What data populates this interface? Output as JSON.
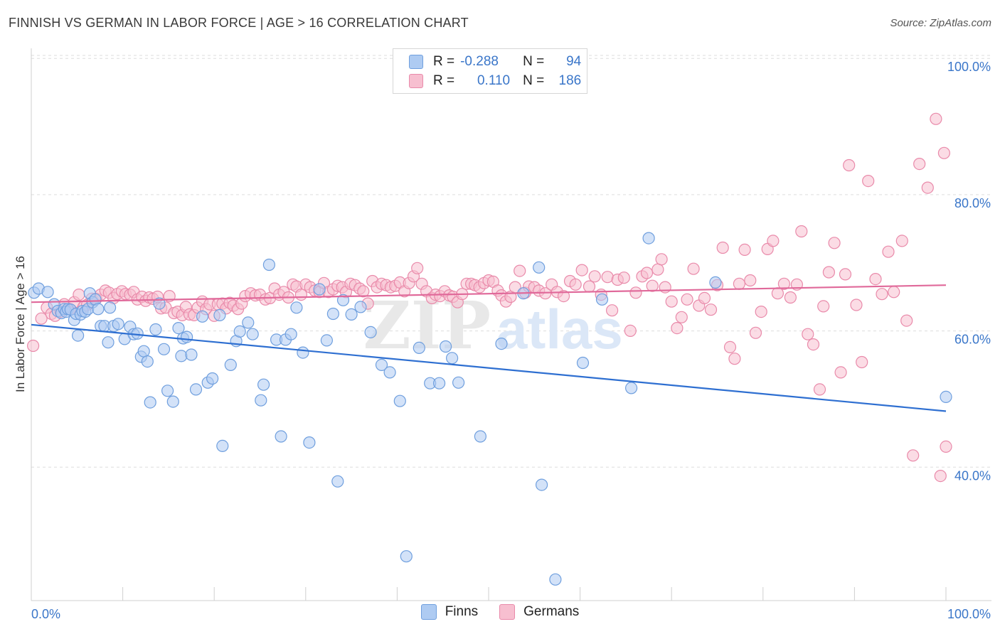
{
  "header": {
    "title": "FINNISH VS GERMAN IN LABOR FORCE | AGE > 16 CORRELATION CHART",
    "source": "Source: ZipAtlas.com"
  },
  "legend": {
    "finns": {
      "r_label": "R =",
      "r_value": "-0.288",
      "n_label": "N =",
      "n_value": "94"
    },
    "germans": {
      "r_label": "R =",
      "r_value": "0.110",
      "n_label": "N =",
      "n_value": "186"
    }
  },
  "bottom_legend": [
    "Finns",
    "Germans"
  ],
  "colors": {
    "finns_fill": "#aecbf2",
    "finns_stroke": "#6f9fde",
    "finns_line": "#2e6fd1",
    "germans_fill": "#f7bfd0",
    "germans_stroke": "#e98aaa",
    "germans_line": "#e0699a",
    "axis_text": "#3a76c9",
    "grid": "#dddddd"
  },
  "chart_data": {
    "type": "scatter",
    "title": "FINNISH VS GERMAN IN LABOR FORCE | AGE > 16 CORRELATION CHART",
    "xlabel": "",
    "ylabel": "In Labor Force | Age > 16",
    "xlim": [
      0,
      100
    ],
    "ylim": [
      20,
      103
    ],
    "x_tick_labels": [
      "0.0%",
      "100.0%"
    ],
    "y_ticks": [
      40,
      60,
      80,
      100
    ],
    "y_tick_labels": [
      "40.0%",
      "60.0%",
      "80.0%",
      "100.0%"
    ],
    "grid": true,
    "watermark": "ZIPatlas",
    "series": [
      {
        "name": "Finns",
        "r": -0.288,
        "n": 94,
        "trend": {
          "x": [
            0,
            100
          ],
          "y": [
            60.5,
            47.8
          ]
        },
        "points": [
          [
            0.3,
            65.2
          ],
          [
            0.8,
            65.8
          ],
          [
            1.8,
            65.3
          ],
          [
            2.5,
            63.5
          ],
          [
            2.9,
            62.5
          ],
          [
            3.3,
            62.2
          ],
          [
            3.6,
            62.8
          ],
          [
            3.8,
            62.4
          ],
          [
            4.0,
            62.8
          ],
          [
            4.3,
            62.7
          ],
          [
            4.7,
            61.2
          ],
          [
            4.9,
            62.1
          ],
          [
            5.1,
            58.9
          ],
          [
            5.4,
            62.0
          ],
          [
            5.6,
            62.5
          ],
          [
            5.9,
            62.4
          ],
          [
            6.2,
            62.8
          ],
          [
            6.4,
            65.1
          ],
          [
            6.7,
            63.8
          ],
          [
            7.0,
            64.2
          ],
          [
            7.3,
            62.8
          ],
          [
            7.6,
            60.3
          ],
          [
            8.0,
            60.3
          ],
          [
            8.4,
            57.9
          ],
          [
            8.6,
            63.0
          ],
          [
            9.0,
            60.3
          ],
          [
            9.5,
            60.6
          ],
          [
            10.2,
            58.4
          ],
          [
            10.8,
            60.2
          ],
          [
            11.2,
            59.1
          ],
          [
            11.6,
            59.2
          ],
          [
            12.0,
            55.8
          ],
          [
            12.3,
            56.6
          ],
          [
            12.7,
            55.1
          ],
          [
            13.0,
            49.1
          ],
          [
            13.6,
            59.8
          ],
          [
            14.0,
            63.6
          ],
          [
            14.5,
            56.9
          ],
          [
            14.9,
            50.8
          ],
          [
            15.5,
            49.2
          ],
          [
            16.1,
            60.0
          ],
          [
            16.4,
            55.9
          ],
          [
            16.6,
            58.5
          ],
          [
            17.0,
            58.7
          ],
          [
            17.5,
            56.1
          ],
          [
            18.0,
            51.0
          ],
          [
            18.7,
            61.7
          ],
          [
            19.3,
            52.0
          ],
          [
            19.8,
            52.6
          ],
          [
            20.6,
            61.9
          ],
          [
            20.9,
            42.7
          ],
          [
            21.8,
            54.6
          ],
          [
            22.4,
            58.1
          ],
          [
            22.8,
            59.5
          ],
          [
            23.7,
            60.8
          ],
          [
            24.2,
            59.1
          ],
          [
            25.1,
            49.4
          ],
          [
            25.4,
            51.7
          ],
          [
            26.0,
            69.3
          ],
          [
            26.8,
            58.3
          ],
          [
            27.3,
            44.1
          ],
          [
            27.8,
            58.3
          ],
          [
            28.4,
            59.1
          ],
          [
            29.0,
            63.0
          ],
          [
            29.7,
            56.4
          ],
          [
            30.4,
            43.2
          ],
          [
            31.5,
            65.7
          ],
          [
            32.3,
            58.2
          ],
          [
            33.0,
            62.1
          ],
          [
            33.5,
            37.5
          ],
          [
            34.1,
            64.1
          ],
          [
            35.0,
            62.0
          ],
          [
            36.0,
            63.1
          ],
          [
            37.1,
            59.4
          ],
          [
            38.3,
            54.6
          ],
          [
            39.2,
            53.5
          ],
          [
            40.3,
            49.3
          ],
          [
            41.0,
            26.5
          ],
          [
            42.4,
            57.1
          ],
          [
            43.6,
            51.9
          ],
          [
            44.6,
            51.9
          ],
          [
            45.3,
            57.3
          ],
          [
            46.0,
            55.6
          ],
          [
            46.7,
            52.0
          ],
          [
            49.1,
            44.1
          ],
          [
            51.4,
            57.7
          ],
          [
            53.8,
            65.1
          ],
          [
            55.5,
            68.9
          ],
          [
            55.8,
            37.0
          ],
          [
            57.3,
            23.1
          ],
          [
            60.3,
            54.9
          ],
          [
            62.4,
            64.2
          ],
          [
            65.6,
            51.2
          ],
          [
            67.5,
            73.2
          ],
          [
            74.8,
            66.7
          ],
          [
            100.0,
            49.9
          ]
        ]
      },
      {
        "name": "Germans",
        "r": 0.11,
        "n": 186,
        "trend": {
          "x": [
            0,
            100
          ],
          "y": [
            63.8,
            66.3
          ]
        },
        "points": [
          [
            0.2,
            57.4
          ],
          [
            1.1,
            61.4
          ],
          [
            1.7,
            63.0
          ],
          [
            2.2,
            62.1
          ],
          [
            2.6,
            61.8
          ],
          [
            3.2,
            62.4
          ],
          [
            3.6,
            63.5
          ],
          [
            4.2,
            62.8
          ],
          [
            4.7,
            63.8
          ],
          [
            5.2,
            64.9
          ],
          [
            5.7,
            63.1
          ],
          [
            6.1,
            63.4
          ],
          [
            6.6,
            64.3
          ],
          [
            7.1,
            64.3
          ],
          [
            7.6,
            64.9
          ],
          [
            8.1,
            65.5
          ],
          [
            8.5,
            65.2
          ],
          [
            9.0,
            64.4
          ],
          [
            9.4,
            65.0
          ],
          [
            9.9,
            65.4
          ],
          [
            10.3,
            65.0
          ],
          [
            10.8,
            64.9
          ],
          [
            11.2,
            65.3
          ],
          [
            11.6,
            64.2
          ],
          [
            12.1,
            64.6
          ],
          [
            12.5,
            64.0
          ],
          [
            12.9,
            64.5
          ],
          [
            13.3,
            64.3
          ],
          [
            13.8,
            64.6
          ],
          [
            14.2,
            62.9
          ],
          [
            14.7,
            63.0
          ],
          [
            15.1,
            64.7
          ],
          [
            15.6,
            62.2
          ],
          [
            16.0,
            62.4
          ],
          [
            16.5,
            61.9
          ],
          [
            16.9,
            63.1
          ],
          [
            17.3,
            62.0
          ],
          [
            17.8,
            61.9
          ],
          [
            18.2,
            63.0
          ],
          [
            18.7,
            63.9
          ],
          [
            19.1,
            62.8
          ],
          [
            19.5,
            63.5
          ],
          [
            20.0,
            61.8
          ],
          [
            20.4,
            63.5
          ],
          [
            20.9,
            63.6
          ],
          [
            21.3,
            62.9
          ],
          [
            21.7,
            63.7
          ],
          [
            22.1,
            63.3
          ],
          [
            22.6,
            62.8
          ],
          [
            23.0,
            63.6
          ],
          [
            23.4,
            64.7
          ],
          [
            24.0,
            65.1
          ],
          [
            24.5,
            64.8
          ],
          [
            25.0,
            64.9
          ],
          [
            25.6,
            64.2
          ],
          [
            26.1,
            64.4
          ],
          [
            26.6,
            65.8
          ],
          [
            27.1,
            64.9
          ],
          [
            27.6,
            65.3
          ],
          [
            28.1,
            64.5
          ],
          [
            28.6,
            66.4
          ],
          [
            29.0,
            66.1
          ],
          [
            29.5,
            64.9
          ],
          [
            30.0,
            66.4
          ],
          [
            30.5,
            66.0
          ],
          [
            31.0,
            65.5
          ],
          [
            31.5,
            65.3
          ],
          [
            32.0,
            66.6
          ],
          [
            32.5,
            65.3
          ],
          [
            33.0,
            65.7
          ],
          [
            33.5,
            66.2
          ],
          [
            34.0,
            66.0
          ],
          [
            34.4,
            65.3
          ],
          [
            34.9,
            66.5
          ],
          [
            35.4,
            66.3
          ],
          [
            35.9,
            65.8
          ],
          [
            36.3,
            65.4
          ],
          [
            36.8,
            63.6
          ],
          [
            37.3,
            66.9
          ],
          [
            37.8,
            66.0
          ],
          [
            38.3,
            66.5
          ],
          [
            38.8,
            66.3
          ],
          [
            39.3,
            66.0
          ],
          [
            39.8,
            66.2
          ],
          [
            40.3,
            66.7
          ],
          [
            40.8,
            65.4
          ],
          [
            41.3,
            66.6
          ],
          [
            41.8,
            67.6
          ],
          [
            42.2,
            68.8
          ],
          [
            42.7,
            66.5
          ],
          [
            43.2,
            65.4
          ],
          [
            43.8,
            64.4
          ],
          [
            44.2,
            64.9
          ],
          [
            44.7,
            64.7
          ],
          [
            45.2,
            65.4
          ],
          [
            45.7,
            64.8
          ],
          [
            46.1,
            64.6
          ],
          [
            46.6,
            63.8
          ],
          [
            47.1,
            65.0
          ],
          [
            47.6,
            66.5
          ],
          [
            48.1,
            66.5
          ],
          [
            48.5,
            66.3
          ],
          [
            49.0,
            66.0
          ],
          [
            49.5,
            66.6
          ],
          [
            50.0,
            67.0
          ],
          [
            50.5,
            66.8
          ],
          [
            51.0,
            65.5
          ],
          [
            51.4,
            64.8
          ],
          [
            51.9,
            63.9
          ],
          [
            52.4,
            64.6
          ],
          [
            52.9,
            66.0
          ],
          [
            53.4,
            68.4
          ],
          [
            54.0,
            65.2
          ],
          [
            54.4,
            66.1
          ],
          [
            55.0,
            66.0
          ],
          [
            55.5,
            65.5
          ],
          [
            56.2,
            65.1
          ],
          [
            56.9,
            66.4
          ],
          [
            57.5,
            65.3
          ],
          [
            58.2,
            64.7
          ],
          [
            58.9,
            66.9
          ],
          [
            59.5,
            66.4
          ],
          [
            60.2,
            68.5
          ],
          [
            61.0,
            66.1
          ],
          [
            61.6,
            67.6
          ],
          [
            62.3,
            64.9
          ],
          [
            63.0,
            67.5
          ],
          [
            63.5,
            62.6
          ],
          [
            64.1,
            67.1
          ],
          [
            64.8,
            67.4
          ],
          [
            65.5,
            59.6
          ],
          [
            66.1,
            65.2
          ],
          [
            66.8,
            67.6
          ],
          [
            67.3,
            68.1
          ],
          [
            67.9,
            66.2
          ],
          [
            68.5,
            68.6
          ],
          [
            68.9,
            70.1
          ],
          [
            69.3,
            66.0
          ],
          [
            70.0,
            63.9
          ],
          [
            70.6,
            60.0
          ],
          [
            71.1,
            61.6
          ],
          [
            71.7,
            64.2
          ],
          [
            72.4,
            68.7
          ],
          [
            73.0,
            63.3
          ],
          [
            73.6,
            64.4
          ],
          [
            74.3,
            62.7
          ],
          [
            75.0,
            66.3
          ],
          [
            75.6,
            71.8
          ],
          [
            76.4,
            57.2
          ],
          [
            76.9,
            55.5
          ],
          [
            77.4,
            66.5
          ],
          [
            78.0,
            71.5
          ],
          [
            78.6,
            67.0
          ],
          [
            79.2,
            59.3
          ],
          [
            79.8,
            62.4
          ],
          [
            80.5,
            71.6
          ],
          [
            81.1,
            72.8
          ],
          [
            81.6,
            65.1
          ],
          [
            82.3,
            66.5
          ],
          [
            83.0,
            64.5
          ],
          [
            83.7,
            66.4
          ],
          [
            84.2,
            74.2
          ],
          [
            84.9,
            59.1
          ],
          [
            85.5,
            57.6
          ],
          [
            86.2,
            51.0
          ],
          [
            86.6,
            63.2
          ],
          [
            87.2,
            68.2
          ],
          [
            87.8,
            72.5
          ],
          [
            88.5,
            53.5
          ],
          [
            89.0,
            67.9
          ],
          [
            89.4,
            83.9
          ],
          [
            90.2,
            63.4
          ],
          [
            90.8,
            55.0
          ],
          [
            91.5,
            81.6
          ],
          [
            92.3,
            67.2
          ],
          [
            93.0,
            65.0
          ],
          [
            93.7,
            71.2
          ],
          [
            94.3,
            65.3
          ],
          [
            95.2,
            72.8
          ],
          [
            95.7,
            61.1
          ],
          [
            96.4,
            41.3
          ],
          [
            97.1,
            84.1
          ],
          [
            98.0,
            80.6
          ],
          [
            98.9,
            90.7
          ],
          [
            99.4,
            38.3
          ],
          [
            99.8,
            85.7
          ],
          [
            100.0,
            42.6
          ]
        ]
      }
    ]
  }
}
